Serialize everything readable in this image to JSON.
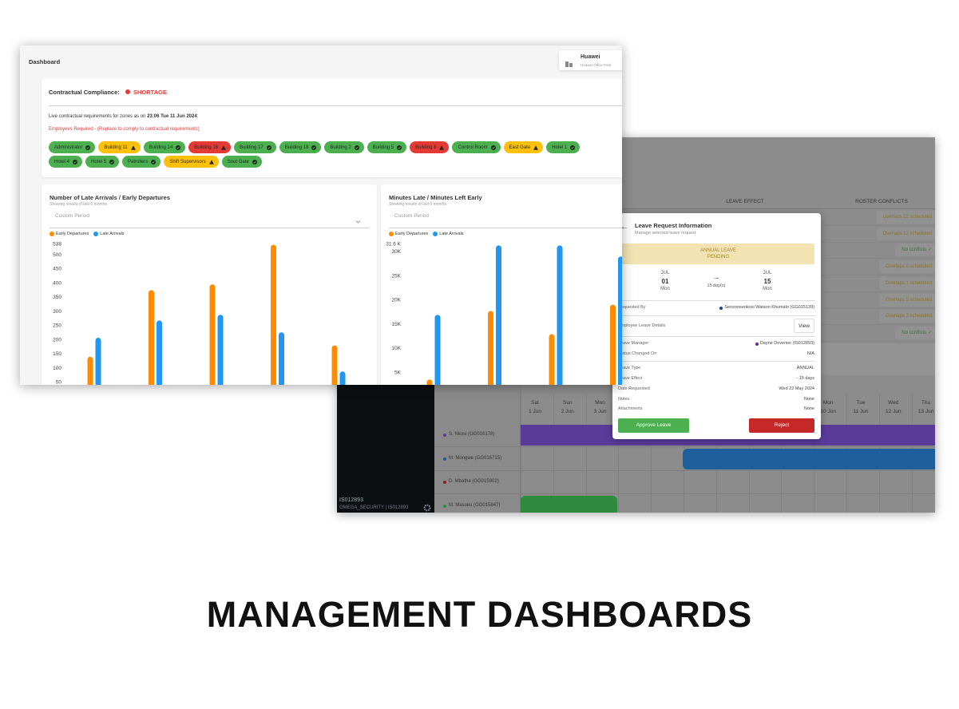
{
  "footer_title": "MANAGEMENT DASHBOARDS",
  "roster": {
    "columns": [
      "LEAVE EFFECT",
      "ROSTER CONFLICTS"
    ],
    "conflicts": [
      {
        "text": "Overlaps 12 scheduled",
        "color": "#8a7424"
      },
      {
        "text": "Overlaps 12 scheduled",
        "color": "#8a7424"
      },
      {
        "text": "No conflicts ✓",
        "color": "#3f6e3f"
      },
      {
        "text": "Overlaps 8 scheduled",
        "color": "#8a7424"
      },
      {
        "text": "Overlaps 1 scheduled",
        "color": "#8a7424"
      },
      {
        "text": "Overlaps 5 scheduled",
        "color": "#8a7424"
      },
      {
        "text": "Overlaps 3 scheduled",
        "color": "#8a7424"
      },
      {
        "text": "No conflicts ✓",
        "color": "#3f6e3f"
      }
    ],
    "days": [
      {
        "weekday": "Sat",
        "date": "1 Jun"
      },
      {
        "weekday": "Sun",
        "date": "2 Jun"
      },
      {
        "weekday": "Mon",
        "date": "3 Jun"
      },
      {
        "weekday": "Mon",
        "date": "10 Jun"
      },
      {
        "weekday": "Tue",
        "date": "11 Jun"
      },
      {
        "weekday": "Wed",
        "date": "12 Jun"
      },
      {
        "weekday": "Thu",
        "date": "13 Jun"
      }
    ],
    "employees": [
      {
        "name": "S. Nkosi (GG016178)",
        "color": "#5b3b9a"
      },
      {
        "name": "M. Mongwe (GG016715)",
        "color": "#1d5f9a"
      },
      {
        "name": "D. Mbatha (GG015902)",
        "color": "#8a1f1f"
      },
      {
        "name": "M. Masuku (GG015847)",
        "color": "#2e8b3e"
      }
    ],
    "user": {
      "id": "IS012893",
      "org": "OMEGA_SECURITY | IS012893"
    },
    "modal": {
      "title": "Leave Request Information",
      "subtitle": "Manage selected leave request",
      "status": [
        "ANNUAL LEAVE",
        "PENDING"
      ],
      "from": {
        "month": "JUL",
        "day": "01",
        "weekday": "Mon"
      },
      "arrow": "→",
      "duration": "15 day(s)",
      "to": {
        "month": "JUL",
        "day": "15",
        "weekday": "Mon"
      },
      "groups": [
        [
          {
            "label": "Requested By",
            "value": "Senzonsenkosi Watson Khumalo (GG015139)",
            "dot": "#1d3f8a"
          }
        ],
        [
          {
            "label": "Employee Leave Details",
            "button": "View"
          }
        ],
        [
          {
            "label": "Leave Manager",
            "value": "Dayne Devenier (IS012893)",
            "dot": "#6a2a8a"
          },
          {
            "label": "Status Changed On",
            "value": "N/A"
          }
        ],
        [
          {
            "label": "Leave Type",
            "value": "ANNUAL"
          },
          {
            "label": "Leave Effect",
            "value": "- 15 days"
          },
          {
            "label": "Date Requested",
            "value": "Wed 22 May 2024"
          },
          {
            "label": "Notes",
            "value": "None"
          },
          {
            "label": "Attachments",
            "value": "None"
          }
        ]
      ],
      "approve": "Approve Leave",
      "reject": "Reject"
    }
  },
  "dashboard": {
    "title": "Dashboard",
    "site": {
      "name": "Huawei",
      "address": "Huawei Office Park"
    },
    "compliance": {
      "label": "Contractual Compliance:",
      "status": "SHORTAGE",
      "note": "Live contractual requirements for zones as on ",
      "timestamp": "23:06 Tue 11 Jun 2024",
      "note_end": ":",
      "required": "Employees Required - (Replace to comply to contractual requirements)"
    },
    "zones": [
      [
        {
          "name": "Administrator",
          "color": "#4caf50",
          "icon": "check"
        },
        {
          "name": "Building 11",
          "color": "#ffc107",
          "icon": "warning"
        },
        {
          "name": "Building 14",
          "color": "#4caf50",
          "icon": "check"
        },
        {
          "name": "Building 16",
          "color": "#e53935",
          "icon": "warning"
        },
        {
          "name": "Building 17",
          "color": "#4caf50",
          "icon": "check"
        },
        {
          "name": "Building 18",
          "color": "#4caf50",
          "icon": "check"
        },
        {
          "name": "Building 2",
          "color": "#4caf50",
          "icon": "check"
        },
        {
          "name": "Building 5",
          "color": "#4caf50",
          "icon": "check"
        },
        {
          "name": "Building 8",
          "color": "#e53935",
          "icon": "warning"
        },
        {
          "name": "Control Room",
          "color": "#4caf50",
          "icon": "check"
        },
        {
          "name": "East Gate",
          "color": "#ffc107",
          "icon": "warning"
        },
        {
          "name": "Hotel 1",
          "color": "#4caf50",
          "icon": "check"
        }
      ],
      [
        {
          "name": "Hotel 4",
          "color": "#4caf50",
          "icon": "check"
        },
        {
          "name": "Hotel 5",
          "color": "#4caf50",
          "icon": "check"
        },
        {
          "name": "Patrollers",
          "color": "#4caf50",
          "icon": "check"
        },
        {
          "name": "Shift Supervisors",
          "color": "#ffc107",
          "icon": "warning"
        },
        {
          "name": "Sout Gate",
          "color": "#4caf50",
          "icon": "check"
        }
      ]
    ],
    "charts": [
      {
        "type": "bar",
        "title": "Number of Late Arrivals / Early Departures",
        "subtitle": "Showing results of last 6 months",
        "period": "Custom Period",
        "series": [
          {
            "name": "Early Departures",
            "color": "#ff8c00",
            "values": [
              140,
              375,
              395,
              535,
              180
            ]
          },
          {
            "name": "Late Arrivals",
            "color": "#2196f3",
            "values": [
              207,
              268,
              288,
              226,
              88
            ]
          }
        ],
        "ylim": [
          0,
          538
        ],
        "yticks": [
          50,
          100,
          150,
          200,
          250,
          300,
          350,
          400,
          450,
          500,
          538
        ]
      },
      {
        "type": "bar",
        "title": "Minutes Late / Minutes Left Early",
        "subtitle": "Showing results of last 6 months",
        "period": "Custom Period",
        "series": [
          {
            "name": "Early Departures",
            "color": "#ff8c00",
            "values": [
              3500,
              17700,
              12900,
              19000
            ]
          },
          {
            "name": "Late Arrivals",
            "color": "#2196f3",
            "values": [
              16900,
              31300,
              31300,
              29000
            ]
          }
        ],
        "ylim": [
          0,
          31600
        ],
        "yticks": [
          {
            "value": 5000,
            "label": "5K"
          },
          {
            "value": 10000,
            "label": "10K"
          },
          {
            "value": 15000,
            "label": "15K"
          },
          {
            "value": 20000,
            "label": "20K"
          },
          {
            "value": 25000,
            "label": "25K"
          },
          {
            "value": 30000,
            "label": "30K"
          },
          {
            "value": 31600,
            "label": "31.6 K"
          }
        ]
      }
    ]
  }
}
